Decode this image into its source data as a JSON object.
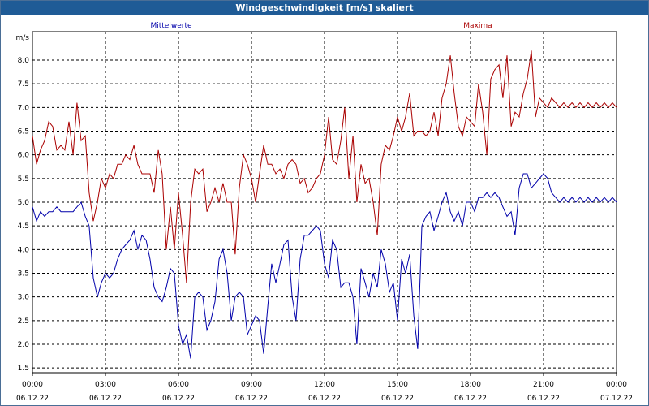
{
  "window": {
    "title": "Windgeschwindigkeit [m/s] skaliert"
  },
  "chart_data": {
    "type": "line",
    "title": "Windgeschwindigkeit [m/s] skaliert",
    "ylabel": "m/s",
    "xlabel": "",
    "xlim": [
      0,
      24
    ],
    "ylim": [
      1.4,
      8.6
    ],
    "grid": true,
    "legend": [
      {
        "name": "Mittelwerte",
        "color": "#0000aa",
        "position": "top-left"
      },
      {
        "name": "Maxima",
        "color": "#aa0000",
        "position": "top-right"
      }
    ],
    "y_ticks": [
      "1.5",
      "2.0",
      "2.5",
      "3.0",
      "3.5",
      "4.0",
      "4.5",
      "5.0",
      "5.5",
      "6.0",
      "6.5",
      "7.0",
      "7.5",
      "8.0"
    ],
    "x_ticks": [
      {
        "time": "00:00",
        "date": "06.12.22"
      },
      {
        "time": "03:00",
        "date": "06.12.22"
      },
      {
        "time": "06:00",
        "date": "06.12.22"
      },
      {
        "time": "09:00",
        "date": "06.12.22"
      },
      {
        "time": "12:00",
        "date": "06.12.22"
      },
      {
        "time": "15:00",
        "date": "06.12.22"
      },
      {
        "time": "18:00",
        "date": "06.12.22"
      },
      {
        "time": "21:00",
        "date": "06.12.22"
      },
      {
        "time": "00:00",
        "date": "07.12.22"
      }
    ],
    "series": [
      {
        "name": "Maxima",
        "color": "#aa0000",
        "x": [
          0,
          0.17,
          0.33,
          0.5,
          0.67,
          0.83,
          1.0,
          1.17,
          1.33,
          1.5,
          1.67,
          1.83,
          2.0,
          2.17,
          2.33,
          2.5,
          2.67,
          2.83,
          3.0,
          3.17,
          3.33,
          3.5,
          3.67,
          3.83,
          4.0,
          4.17,
          4.33,
          4.5,
          4.67,
          4.83,
          5.0,
          5.17,
          5.33,
          5.5,
          5.67,
          5.83,
          6.0,
          6.17,
          6.33,
          6.5,
          6.67,
          6.83,
          7.0,
          7.17,
          7.33,
          7.5,
          7.67,
          7.83,
          8.0,
          8.17,
          8.33,
          8.5,
          8.67,
          8.83,
          9.0,
          9.17,
          9.33,
          9.5,
          9.67,
          9.83,
          10.0,
          10.17,
          10.33,
          10.5,
          10.67,
          10.83,
          11.0,
          11.17,
          11.33,
          11.5,
          11.67,
          11.83,
          12.0,
          12.17,
          12.33,
          12.5,
          12.67,
          12.83,
          13.0,
          13.17,
          13.33,
          13.5,
          13.67,
          13.83,
          14.0,
          14.17,
          14.33,
          14.5,
          14.67,
          14.83,
          15.0,
          15.17,
          15.33,
          15.5,
          15.67,
          15.83,
          16.0,
          16.17,
          16.33,
          16.5,
          16.67,
          16.83,
          17.0,
          17.17,
          17.33,
          17.5,
          17.67,
          17.83,
          18.0,
          18.17,
          18.33,
          18.5,
          18.67,
          18.83,
          19.0,
          19.17,
          19.33,
          19.5,
          19.67,
          19.83,
          20.0,
          20.17,
          20.33,
          20.5,
          20.67,
          20.83,
          21.0,
          21.17,
          21.33,
          21.5,
          21.67,
          21.83,
          22.0,
          22.17,
          22.33,
          22.5,
          22.67,
          22.83,
          23.0,
          23.17,
          23.33,
          23.5,
          23.67,
          23.83,
          24.0
        ],
        "y": [
          6.4,
          5.8,
          6.1,
          6.3,
          6.7,
          6.6,
          6.1,
          6.2,
          6.1,
          6.7,
          6.0,
          7.1,
          6.3,
          6.4,
          5.2,
          4.6,
          5.0,
          5.5,
          5.3,
          5.6,
          5.5,
          5.8,
          5.8,
          6.0,
          5.9,
          6.2,
          5.8,
          5.6,
          5.6,
          5.6,
          5.2,
          6.1,
          5.6,
          4.0,
          4.9,
          4.0,
          5.2,
          4.3,
          3.3,
          5.0,
          5.7,
          5.6,
          5.7,
          4.8,
          5.0,
          5.3,
          5.0,
          5.4,
          5.0,
          5.0,
          3.9,
          5.3,
          6.0,
          5.8,
          5.5,
          5.0,
          5.6,
          6.2,
          5.8,
          5.8,
          5.6,
          5.7,
          5.5,
          5.8,
          5.9,
          5.8,
          5.4,
          5.5,
          5.2,
          5.3,
          5.5,
          5.6,
          6.0,
          6.8,
          5.9,
          5.8,
          6.3,
          7.0,
          5.5,
          6.4,
          5.0,
          5.8,
          5.4,
          5.5,
          5.0,
          4.3,
          5.8,
          6.2,
          6.1,
          6.4,
          6.8,
          6.5,
          6.8,
          7.3,
          6.4,
          6.5,
          6.5,
          6.4,
          6.5,
          6.9,
          6.4,
          7.2,
          7.5,
          8.1,
          7.3,
          6.6,
          6.4,
          6.8,
          6.7,
          6.6,
          7.5,
          6.9,
          6.0,
          7.6,
          7.8,
          7.9,
          7.2,
          8.1,
          6.6,
          6.9,
          6.8,
          7.3,
          7.6,
          8.2,
          6.8,
          7.2,
          7.1,
          7.0,
          7.2,
          7.1,
          7.0,
          7.1,
          7.0,
          7.1,
          7.0,
          7.1,
          7.0,
          7.1,
          7.0,
          7.1,
          7.0,
          7.1,
          7.0,
          7.1,
          7.0
        ]
      },
      {
        "name": "Mittelwerte",
        "color": "#0000aa",
        "x": [
          0,
          0.17,
          0.33,
          0.5,
          0.67,
          0.83,
          1.0,
          1.17,
          1.33,
          1.5,
          1.67,
          1.83,
          2.0,
          2.17,
          2.33,
          2.5,
          2.67,
          2.83,
          3.0,
          3.17,
          3.33,
          3.5,
          3.67,
          3.83,
          4.0,
          4.17,
          4.33,
          4.5,
          4.67,
          4.83,
          5.0,
          5.17,
          5.33,
          5.5,
          5.67,
          5.83,
          6.0,
          6.17,
          6.33,
          6.5,
          6.67,
          6.83,
          7.0,
          7.17,
          7.33,
          7.5,
          7.67,
          7.83,
          8.0,
          8.17,
          8.33,
          8.5,
          8.67,
          8.83,
          9.0,
          9.17,
          9.33,
          9.5,
          9.67,
          9.83,
          10.0,
          10.17,
          10.33,
          10.5,
          10.67,
          10.83,
          11.0,
          11.17,
          11.33,
          11.5,
          11.67,
          11.83,
          12.0,
          12.17,
          12.33,
          12.5,
          12.67,
          12.83,
          13.0,
          13.17,
          13.33,
          13.5,
          13.67,
          13.83,
          14.0,
          14.17,
          14.33,
          14.5,
          14.67,
          14.83,
          15.0,
          15.17,
          15.33,
          15.5,
          15.67,
          15.83,
          16.0,
          16.17,
          16.33,
          16.5,
          16.67,
          16.83,
          17.0,
          17.17,
          17.33,
          17.5,
          17.67,
          17.83,
          18.0,
          18.17,
          18.33,
          18.5,
          18.67,
          18.83,
          19.0,
          19.17,
          19.33,
          19.5,
          19.67,
          19.83,
          20.0,
          20.17,
          20.33,
          20.5,
          20.67,
          20.83,
          21.0,
          21.17,
          21.33,
          21.5,
          21.67,
          21.83,
          22.0,
          22.17,
          22.33,
          22.5,
          22.67,
          22.83,
          23.0,
          23.17,
          23.33,
          23.5,
          23.67,
          23.83,
          24.0
        ],
        "y": [
          4.9,
          4.6,
          4.8,
          4.7,
          4.8,
          4.8,
          4.9,
          4.8,
          4.8,
          4.8,
          4.8,
          4.9,
          5.0,
          4.7,
          4.5,
          3.4,
          3.0,
          3.3,
          3.5,
          3.4,
          3.5,
          3.8,
          4.0,
          4.1,
          4.2,
          4.4,
          4.0,
          4.3,
          4.2,
          3.8,
          3.2,
          3.0,
          2.9,
          3.2,
          3.6,
          3.5,
          2.4,
          2.0,
          2.2,
          1.7,
          3.0,
          3.1,
          3.0,
          2.3,
          2.5,
          2.9,
          3.8,
          4.0,
          3.5,
          2.5,
          3.0,
          3.1,
          3.0,
          2.2,
          2.4,
          2.6,
          2.5,
          1.8,
          2.8,
          3.7,
          3.3,
          3.7,
          4.1,
          4.2,
          3.0,
          2.5,
          3.8,
          4.3,
          4.3,
          4.4,
          4.5,
          4.4,
          3.7,
          3.4,
          4.2,
          4.0,
          3.2,
          3.3,
          3.3,
          3.0,
          2.0,
          3.6,
          3.3,
          3.0,
          3.5,
          3.2,
          4.0,
          3.7,
          3.1,
          3.3,
          2.5,
          3.8,
          3.5,
          3.9,
          2.6,
          1.9,
          4.5,
          4.7,
          4.8,
          4.4,
          4.7,
          5.0,
          5.2,
          4.8,
          4.6,
          4.8,
          4.5,
          5.0,
          5.0,
          4.8,
          5.1,
          5.1,
          5.2,
          5.1,
          5.2,
          5.1,
          4.9,
          4.7,
          4.8,
          4.3,
          5.3,
          5.6,
          5.6,
          5.3,
          5.4,
          5.5,
          5.6,
          5.5,
          5.2,
          5.1,
          5.0,
          5.1,
          5.0,
          5.1,
          5.0,
          5.1,
          5.0,
          5.1,
          5.0,
          5.1,
          5.0,
          5.1,
          5.0,
          5.1,
          5.0
        ]
      }
    ]
  }
}
